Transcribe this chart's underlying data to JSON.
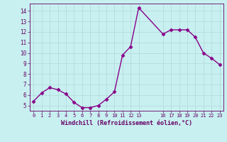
{
  "x": [
    0,
    1,
    2,
    3,
    4,
    5,
    6,
    7,
    8,
    9,
    10,
    11,
    12,
    13,
    16,
    17,
    18,
    19,
    20,
    21,
    22,
    23
  ],
  "y": [
    5.4,
    6.2,
    6.7,
    6.5,
    6.1,
    5.3,
    4.8,
    4.8,
    5.0,
    5.6,
    6.3,
    9.8,
    10.6,
    14.3,
    11.8,
    12.2,
    12.2,
    12.2,
    11.5,
    10.0,
    9.5,
    8.9
  ],
  "line_color": "#880088",
  "marker": "D",
  "markersize": 2.5,
  "linewidth": 1.0,
  "bg_color": "#c8f0f0",
  "grid_color": "#b0d8d8",
  "xlabel": "Windchill (Refroidissement éolien,°C)",
  "xlabel_color": "#660066",
  "tick_color": "#660066",
  "ylim": [
    4.5,
    14.7
  ],
  "xlim": [
    -0.5,
    23.5
  ],
  "yticks": [
    5,
    6,
    7,
    8,
    9,
    10,
    11,
    12,
    13,
    14
  ],
  "xticks": [
    0,
    1,
    2,
    3,
    4,
    5,
    6,
    7,
    8,
    9,
    10,
    11,
    12,
    13,
    16,
    17,
    18,
    19,
    20,
    21,
    22,
    23
  ],
  "xtick_labels": [
    "0",
    "1",
    "2",
    "3",
    "4",
    "5",
    "6",
    "7",
    "8",
    "9",
    "10",
    "11",
    "12",
    "13",
    "16",
    "17",
    "18",
    "19",
    "20",
    "21",
    "22",
    "23"
  ]
}
